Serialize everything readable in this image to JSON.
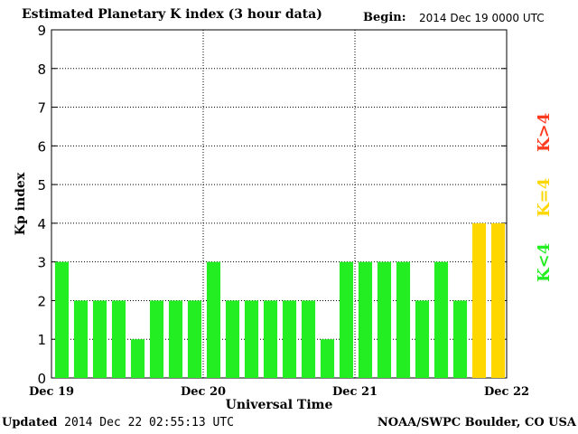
{
  "header": {
    "title": "Estimated Planetary K index (3 hour data)",
    "begin_label": "Begin:",
    "begin_value": "2014 Dec 19 0000 UTC"
  },
  "footer": {
    "updated_label": "Updated",
    "updated_value": "2014 Dec 22 02:55:13 UTC",
    "source": "NOAA/SWPC Boulder, CO USA"
  },
  "legend": {
    "low": "K<4",
    "equal": "K=4",
    "high": "K>4"
  },
  "colors": {
    "low": "#22ee22",
    "equal": "#ffd700",
    "high": "#ff3b1f"
  },
  "chart_data": {
    "type": "bar",
    "title": "Estimated Planetary K index (3 hour data)",
    "xlabel": "Universal Time",
    "ylabel": "Kp index",
    "ylim": [
      0,
      9
    ],
    "yticks": [
      "0",
      "1",
      "2",
      "3",
      "4",
      "5",
      "6",
      "7",
      "8",
      "9"
    ],
    "xtick_labels": [
      "Dec 19",
      "Dec 20",
      "Dec 21",
      "Dec 22"
    ],
    "values": [
      3,
      2,
      2,
      2,
      1,
      2,
      2,
      2,
      3,
      2,
      2,
      2,
      2,
      2,
      1,
      3,
      3,
      3,
      3,
      2,
      3,
      2,
      4,
      4
    ],
    "grid": "dotted"
  }
}
